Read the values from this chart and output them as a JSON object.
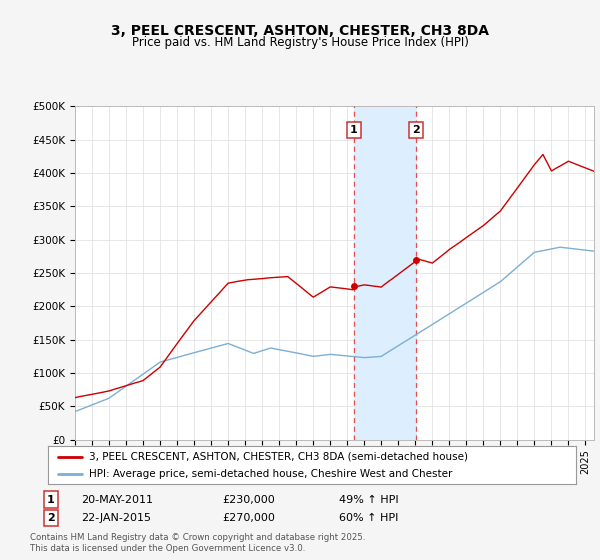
{
  "title": "3, PEEL CRESCENT, ASHTON, CHESTER, CH3 8DA",
  "subtitle": "Price paid vs. HM Land Registry's House Price Index (HPI)",
  "legend_line1": "3, PEEL CRESCENT, ASHTON, CHESTER, CH3 8DA (semi-detached house)",
  "legend_line2": "HPI: Average price, semi-detached house, Cheshire West and Chester",
  "footnote": "Contains HM Land Registry data © Crown copyright and database right 2025.\nThis data is licensed under the Open Government Licence v3.0.",
  "sale1_label": "1",
  "sale1_date": "20-MAY-2011",
  "sale1_price": "£230,000",
  "sale1_hpi": "49% ↑ HPI",
  "sale2_label": "2",
  "sale2_date": "22-JAN-2015",
  "sale2_price": "£270,000",
  "sale2_hpi": "60% ↑ HPI",
  "sale1_x": 2011.38,
  "sale2_x": 2015.06,
  "red_color": "#cc0000",
  "blue_color": "#7bafd4",
  "shade_color": "#ddeeff",
  "vline_color": "#e05050",
  "ylim_min": 0,
  "ylim_max": 500000,
  "yticks": [
    0,
    50000,
    100000,
    150000,
    200000,
    250000,
    300000,
    350000,
    400000,
    450000,
    500000
  ],
  "ytick_labels": [
    "£0",
    "£50K",
    "£100K",
    "£150K",
    "£200K",
    "£250K",
    "£300K",
    "£350K",
    "£400K",
    "£450K",
    "£500K"
  ],
  "xmin": 1995,
  "xmax": 2025.5,
  "background_color": "#f5f5f5",
  "plot_bg_color": "#ffffff",
  "sale1_y": 230000,
  "sale2_y": 270000
}
